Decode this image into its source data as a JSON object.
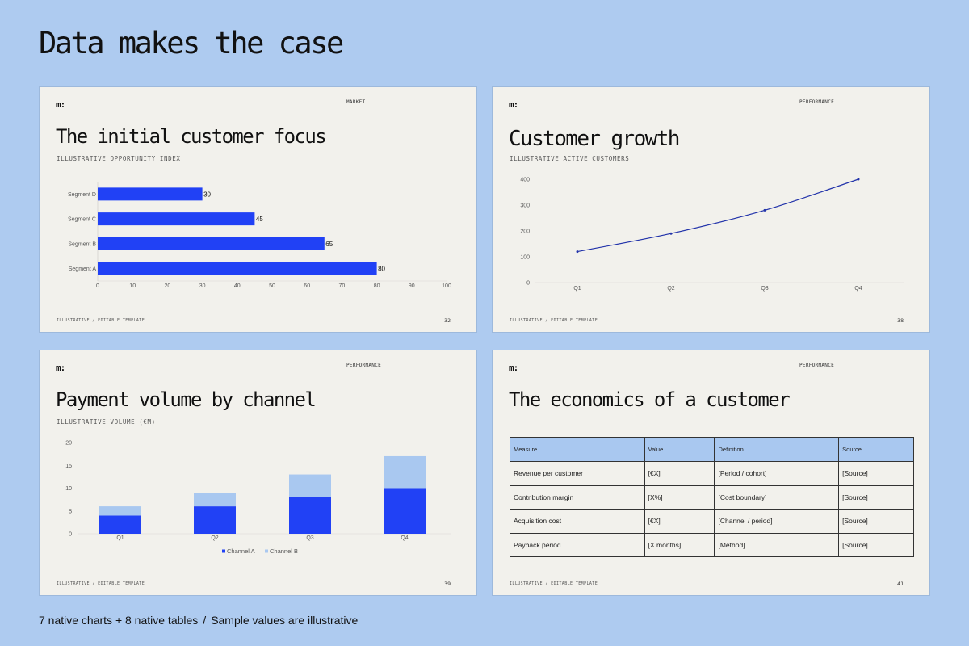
{
  "page": {
    "title": "Data makes the case",
    "footer_left": "7 native charts + 8 native tables",
    "footer_sep": "/",
    "footer_right": "Sample values are illustrative"
  },
  "slides": [
    {
      "logo": "m:",
      "tag": "MARKET",
      "title": "The initial customer focus",
      "subtitle": "ILLUSTRATIVE OPPORTUNITY INDEX",
      "footer": "ILLUSTRATIVE / EDITABLE TEMPLATE",
      "page_number": "32"
    },
    {
      "logo": "m:",
      "tag": "PERFORMANCE",
      "title": "Customer growth",
      "subtitle": "ILLUSTRATIVE ACTIVE CUSTOMERS",
      "footer": "ILLUSTRATIVE / EDITABLE TEMPLATE",
      "page_number": "38"
    },
    {
      "logo": "m:",
      "tag": "PERFORMANCE",
      "title": "Payment volume by channel",
      "subtitle": "ILLUSTRATIVE VOLUME (€M)",
      "footer": "ILLUSTRATIVE / EDITABLE TEMPLATE",
      "page_number": "39"
    },
    {
      "logo": "m:",
      "tag": "PERFORMANCE",
      "title": "The economics of a customer",
      "footer": "ILLUSTRATIVE / EDITABLE TEMPLATE",
      "page_number": "41"
    }
  ],
  "colors": {
    "page_background": "#aecbf0",
    "slide_background": "#f2f1ec",
    "accent_blue": "#2141f5",
    "light_blue": "#a9c8f0",
    "line_blue": "#2233aa"
  },
  "chart_data": [
    {
      "type": "bar",
      "orientation": "horizontal",
      "categories": [
        "Segment D",
        "Segment C",
        "Segment B",
        "Segment A"
      ],
      "values": [
        30,
        45,
        65,
        80
      ],
      "xlim": [
        0,
        100
      ],
      "xticks": [
        "0",
        "10",
        "20",
        "30",
        "40",
        "50",
        "60",
        "70",
        "80",
        "90",
        "100"
      ],
      "data_labels": [
        "30",
        "45",
        "65",
        "80"
      ]
    },
    {
      "type": "line",
      "categories": [
        "Q1",
        "Q2",
        "Q3",
        "Q4"
      ],
      "values": [
        120,
        190,
        280,
        400
      ],
      "ylim": [
        0,
        400
      ],
      "yticks": [
        "0",
        "100",
        "200",
        "300",
        "400"
      ]
    },
    {
      "type": "bar",
      "stacked": true,
      "categories": [
        "Q1",
        "Q2",
        "Q3",
        "Q4"
      ],
      "series": [
        {
          "name": "Channel A",
          "values": [
            4,
            6,
            8,
            10
          ]
        },
        {
          "name": "Channel B",
          "values": [
            2,
            3,
            5,
            7
          ]
        }
      ],
      "ylim": [
        0,
        20
      ],
      "yticks": [
        "0",
        "5",
        "10",
        "15",
        "20"
      ],
      "legend": "bottom"
    },
    {
      "type": "table",
      "headers": [
        "Measure",
        "Value",
        "Definition",
        "Source"
      ],
      "rows": [
        [
          "Revenue per customer",
          "[€X]",
          "[Period / cohort]",
          "[Source]"
        ],
        [
          "Contribution margin",
          "[X%]",
          "[Cost boundary]",
          "[Source]"
        ],
        [
          "Acquisition cost",
          "[€X]",
          "[Channel / period]",
          "[Source]"
        ],
        [
          "Payback period",
          "[X months]",
          "[Method]",
          "[Source]"
        ]
      ]
    }
  ]
}
